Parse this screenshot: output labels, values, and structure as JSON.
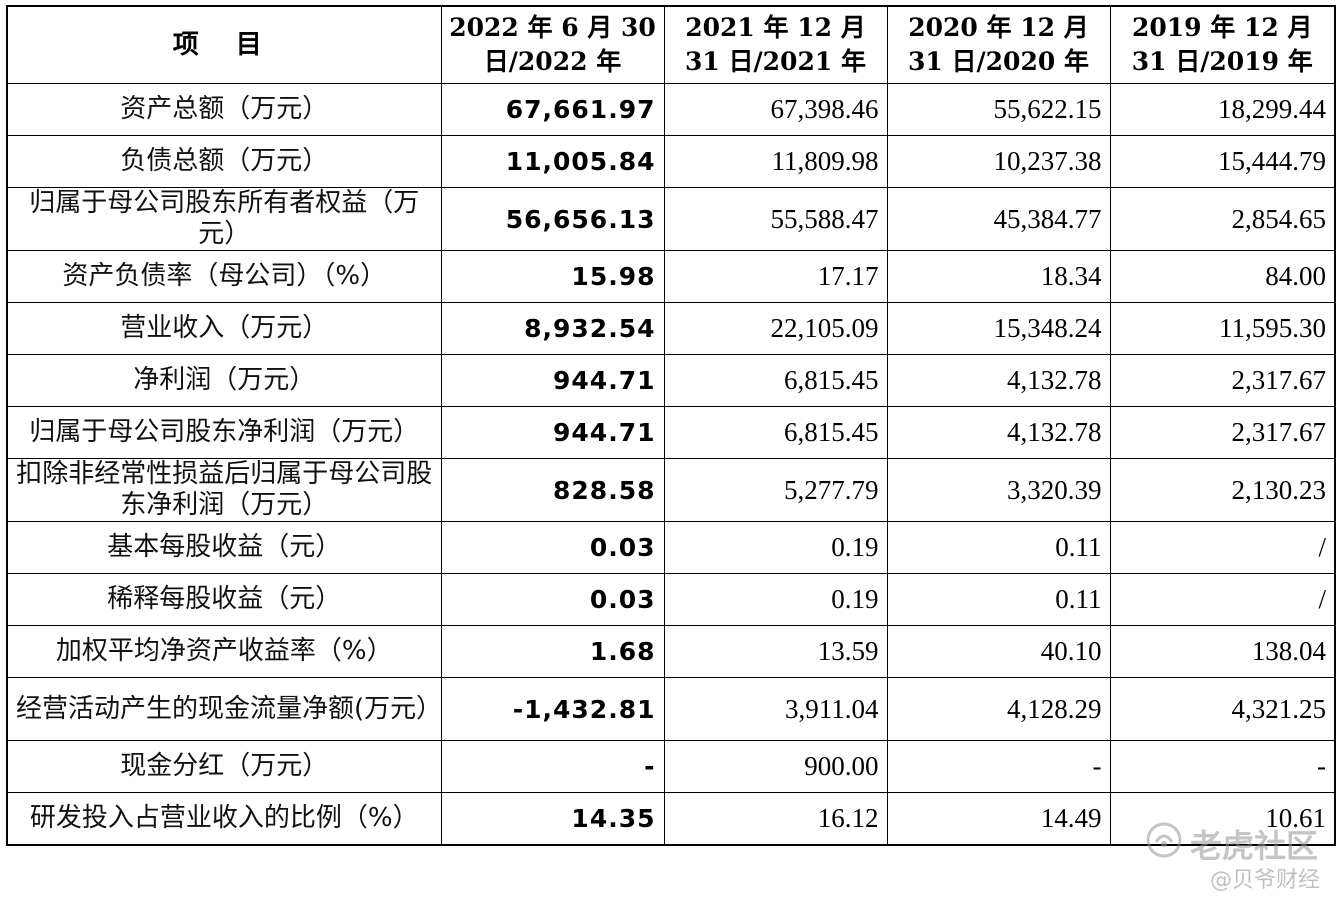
{
  "table": {
    "header": {
      "item": "项 目",
      "periods": [
        "2022 年 6 月 30 日/2022 年",
        "2021 年 12 月 31 日/2021 年",
        "2020 年 12 月 31 日/2020 年",
        "2019 年 12 月 31 日/2019 年"
      ]
    },
    "rows": [
      {
        "label": "资产总额（万元）",
        "values": [
          "67,661.97",
          "67,398.46",
          "55,622.15",
          "18,299.44"
        ]
      },
      {
        "label": "负债总额（万元）",
        "values": [
          "11,005.84",
          "11,809.98",
          "10,237.38",
          "15,444.79"
        ]
      },
      {
        "label": "归属于母公司股东所有者权益（万元）",
        "values": [
          "56,656.13",
          "55,588.47",
          "45,384.77",
          "2,854.65"
        ]
      },
      {
        "label": "资产负债率（母公司）（%）",
        "values": [
          "15.98",
          "17.17",
          "18.34",
          "84.00"
        ]
      },
      {
        "label": "营业收入（万元）",
        "values": [
          "8,932.54",
          "22,105.09",
          "15,348.24",
          "11,595.30"
        ]
      },
      {
        "label": "净利润（万元）",
        "values": [
          "944.71",
          "6,815.45",
          "4,132.78",
          "2,317.67"
        ]
      },
      {
        "label": "归属于母公司股东净利润（万元）",
        "values": [
          "944.71",
          "6,815.45",
          "4,132.78",
          "2,317.67"
        ]
      },
      {
        "label": "扣除非经常性损益后归属于母公司股东净利润（万元）",
        "values": [
          "828.58",
          "5,277.79",
          "3,320.39",
          "2,130.23"
        ]
      },
      {
        "label": "基本每股收益（元）",
        "values": [
          "0.03",
          "0.19",
          "0.11",
          "/"
        ]
      },
      {
        "label": "稀释每股收益（元）",
        "values": [
          "0.03",
          "0.19",
          "0.11",
          "/"
        ]
      },
      {
        "label": "加权平均净资产收益率（%）",
        "values": [
          "1.68",
          "13.59",
          "40.10",
          "138.04"
        ]
      },
      {
        "label": "经营活动产生的现金流量净额(万元）",
        "values": [
          "-1,432.81",
          "3,911.04",
          "4,128.29",
          "4,321.25"
        ]
      },
      {
        "label": "现金分红（万元）",
        "values": [
          "-",
          "900.00",
          "-",
          "-"
        ]
      },
      {
        "label": "研发投入占营业收入的比例（%）",
        "values": [
          "14.35",
          "16.12",
          "14.49",
          "10.61"
        ]
      }
    ]
  },
  "watermark": {
    "brand": "老虎社区",
    "author": "@贝爷财经"
  }
}
